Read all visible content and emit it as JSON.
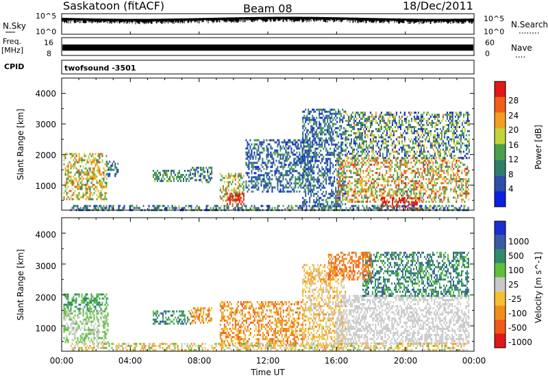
{
  "header": {
    "station": "Saskatoon (fitACF)",
    "beam": "Beam 08",
    "date": "18/Dec/2011"
  },
  "strips": {
    "noise": {
      "left_label": "N.Sky",
      "right_label": "N.Search",
      "left_ticks": [
        "10^5",
        "10^0"
      ],
      "right_ticks": [
        "10^5",
        "10^0"
      ],
      "legend_dots": "........"
    },
    "freq": {
      "left_label_1": "Freq.",
      "left_label_2": "[MHz]",
      "right_label": "Nave",
      "left_ticks": [
        "16",
        "8"
      ],
      "right_ticks": [
        "60",
        "0"
      ],
      "legend_dots": "...."
    },
    "cpid": {
      "left_label": "CPID",
      "program": "twofsound -3501"
    }
  },
  "chart_data": [
    {
      "type": "heatmap",
      "title": "",
      "xlabel": "Time UT",
      "ylabel": "Slant Range [km]",
      "xlim": [
        0,
        24
      ],
      "ylim": [
        180,
        4500
      ],
      "y_ticks": [
        "1000",
        "2000",
        "3000",
        "4000"
      ],
      "x_ticks": [
        "00:00",
        "04:00",
        "08:00",
        "12:00",
        "16:00",
        "20:00",
        "00:00"
      ],
      "colorbar": {
        "label": "Power [dB]",
        "range": [
          0,
          32
        ],
        "ticks": [
          "4",
          "8",
          "12",
          "16",
          "20",
          "24",
          "28"
        ],
        "colors": [
          "#0a1fe0",
          "#2e4fa8",
          "#2f7e6a",
          "#4aa04a",
          "#c4d23a",
          "#f0a020",
          "#f06018",
          "#e01818"
        ]
      },
      "regions": [
        {
          "t0": 0.1,
          "t1": 2.6,
          "r0": 550,
          "r1": 2050,
          "level": [
            2,
            6
          ]
        },
        {
          "t0": 2.6,
          "t1": 3.3,
          "r0": 1300,
          "r1": 1800,
          "level": [
            0,
            3
          ]
        },
        {
          "t0": 5.3,
          "t1": 7.5,
          "r0": 1100,
          "r1": 1500,
          "level": [
            1,
            4
          ]
        },
        {
          "t0": 7.5,
          "t1": 8.7,
          "r0": 1100,
          "r1": 1600,
          "level": [
            0,
            4
          ]
        },
        {
          "t0": 9.2,
          "t1": 10.6,
          "r0": 500,
          "r1": 1400,
          "level": [
            2,
            6
          ]
        },
        {
          "t0": 9.6,
          "t1": 10.6,
          "r0": 400,
          "r1": 750,
          "level": [
            6,
            8
          ]
        },
        {
          "t0": 10.7,
          "t1": 14.5,
          "r0": 800,
          "r1": 2500,
          "level": [
            0,
            3
          ]
        },
        {
          "t0": 14.0,
          "t1": 16.5,
          "r0": 300,
          "r1": 3500,
          "level": [
            0,
            3
          ]
        },
        {
          "t0": 16.0,
          "t1": 23.7,
          "r0": 450,
          "r1": 1900,
          "level": [
            2,
            7
          ]
        },
        {
          "t0": 16.5,
          "t1": 23.7,
          "r0": 1900,
          "r1": 3400,
          "level": [
            0,
            5
          ]
        },
        {
          "t0": 18.5,
          "t1": 21.0,
          "r0": 200,
          "r1": 600,
          "level": [
            6,
            8
          ]
        },
        {
          "t0": 0.5,
          "t1": 23.7,
          "r0": 200,
          "r1": 350,
          "level": [
            0,
            4
          ]
        }
      ]
    },
    {
      "type": "heatmap",
      "title": "",
      "xlabel": "Time UT",
      "ylabel": "Slant Range [km]",
      "xlim": [
        0,
        24
      ],
      "ylim": [
        180,
        4500
      ],
      "y_ticks": [
        "1000",
        "2000",
        "3000",
        "4000"
      ],
      "x_ticks": [
        "00:00",
        "04:00",
        "08:00",
        "12:00",
        "16:00",
        "20:00",
        "00:00"
      ],
      "colorbar": {
        "label": "Velocity [m s^-1]",
        "ticks": [
          "1000",
          "500",
          "100",
          "25",
          "-25",
          "-100",
          "-500",
          "-1000"
        ],
        "colors": [
          "#1a2fd0",
          "#3a5aa0",
          "#2f8a6a",
          "#5ec03a",
          "#c8c8c8",
          "#f4c030",
          "#f09018",
          "#f05a18",
          "#e01818"
        ]
      },
      "regions": [
        {
          "t0": 0.1,
          "t1": 2.7,
          "r0": 1500,
          "r1": 2050,
          "level": [
            2,
            3
          ]
        },
        {
          "t0": 0.1,
          "t1": 2.7,
          "r0": 500,
          "r1": 1500,
          "level": [
            3,
            4
          ]
        },
        {
          "t0": 5.3,
          "t1": 7.5,
          "r0": 1100,
          "r1": 1500,
          "level": [
            1,
            3
          ]
        },
        {
          "t0": 7.5,
          "t1": 8.7,
          "r0": 1100,
          "r1": 1600,
          "level": [
            5,
            7
          ]
        },
        {
          "t0": 9.2,
          "t1": 14.0,
          "r0": 400,
          "r1": 1800,
          "level": [
            5,
            7
          ]
        },
        {
          "t0": 14.0,
          "t1": 16.5,
          "r0": 300,
          "r1": 3000,
          "level": [
            4,
            6
          ]
        },
        {
          "t0": 16.0,
          "t1": 23.7,
          "r0": 450,
          "r1": 2000,
          "level": [
            4,
            4
          ]
        },
        {
          "t0": 17.5,
          "t1": 23.7,
          "r0": 2000,
          "r1": 3400,
          "level": [
            1,
            3
          ]
        },
        {
          "t0": 15.5,
          "t1": 18.0,
          "r0": 2500,
          "r1": 3400,
          "level": [
            6,
            7
          ]
        },
        {
          "t0": 0.5,
          "t1": 23.7,
          "r0": 200,
          "r1": 450,
          "level": [
            3,
            6
          ]
        }
      ]
    }
  ],
  "colors": {
    "axis": "#000000",
    "background": "#ffffff"
  }
}
